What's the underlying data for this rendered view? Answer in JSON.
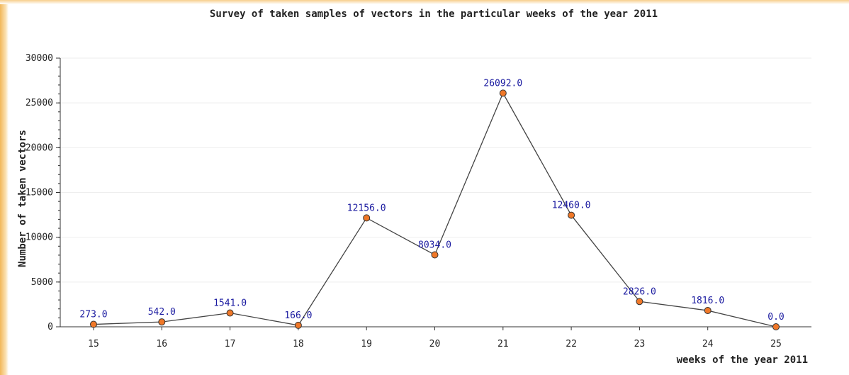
{
  "chart_data": {
    "type": "line",
    "title": "Survey of taken samples of vectors in the particular weeks of the year 2011",
    "x_label": "weeks of the year 2011",
    "y_label": "Number of taken vectors",
    "categories": [
      "15",
      "16",
      "17",
      "18",
      "19",
      "20",
      "21",
      "22",
      "23",
      "24",
      "25"
    ],
    "values": [
      273,
      542,
      1541,
      166,
      12156,
      8034,
      26092,
      12460,
      2826,
      1816,
      0
    ],
    "value_labels": [
      "273.0",
      "542.0",
      "1541.0",
      "166.0",
      "12156.0",
      "8034.0",
      "26092.0",
      "12460.0",
      "2826.0",
      "1816.0",
      "0.0"
    ],
    "color": "#f07828",
    "ylim": [
      0,
      30000
    ],
    "yticks": [
      0,
      5000,
      10000,
      15000,
      20000,
      25000,
      30000
    ],
    "grid": true
  }
}
